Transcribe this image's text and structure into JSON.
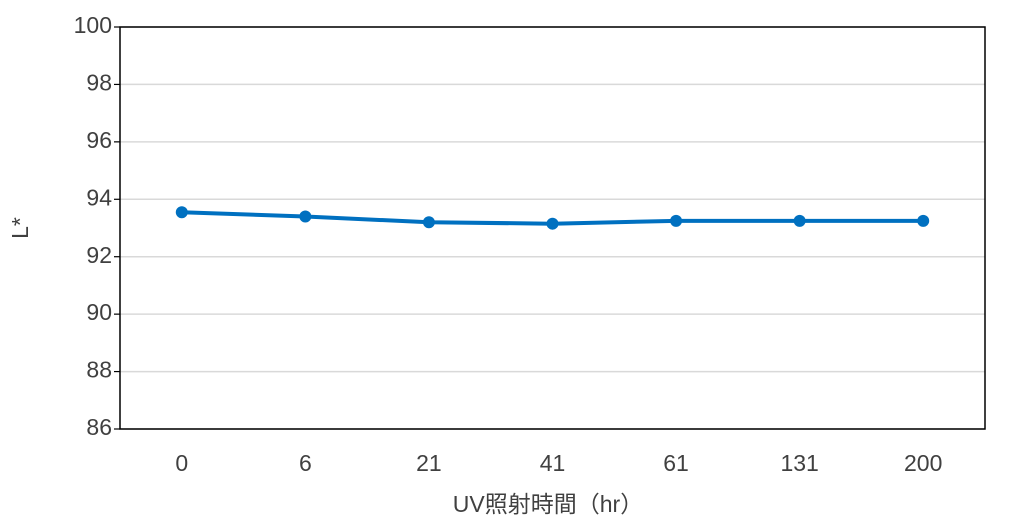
{
  "chart_data": {
    "type": "line",
    "xlabel": "UV照射時間（hr）",
    "ylabel": "L*",
    "categories": [
      "0",
      "6",
      "21",
      "41",
      "61",
      "131",
      "200"
    ],
    "series": [
      {
        "name": "L*",
        "color": "#0070c0",
        "values": [
          93.55,
          93.4,
          93.2,
          93.15,
          93.25,
          93.25,
          93.25
        ]
      }
    ],
    "ylim": [
      86,
      100
    ],
    "yticks": [
      86,
      88,
      90,
      92,
      94,
      96,
      98,
      100
    ],
    "grid": true
  }
}
